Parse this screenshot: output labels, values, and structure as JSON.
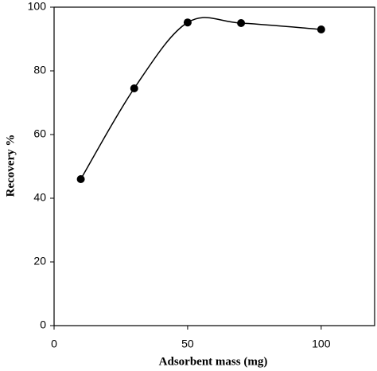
{
  "chart_data": {
    "type": "scatter",
    "x_label": "Adsorbent mass (mg)",
    "y_label": "Recovery %",
    "x": [
      10,
      30,
      50,
      70,
      100
    ],
    "values": [
      46,
      74.5,
      95.2,
      95,
      93
    ],
    "color": "#000000",
    "smooth_line": true,
    "xlim": [
      0,
      120
    ],
    "xticks": [
      0,
      50,
      100
    ],
    "ylim": [
      0,
      100
    ],
    "yticks": [
      0,
      20,
      40,
      60,
      80,
      100
    ]
  }
}
